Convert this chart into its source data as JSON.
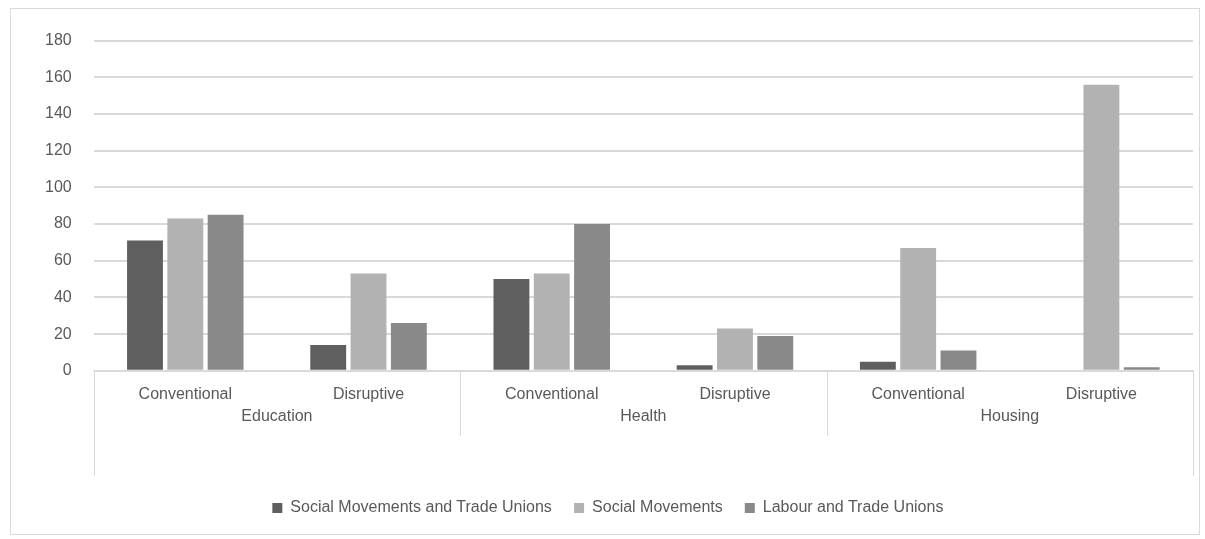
{
  "chart_data": {
    "type": "bar",
    "categories": [
      "Conventional",
      "Disruptive",
      "Conventional",
      "Disruptive",
      "Conventional",
      "Disruptive"
    ],
    "series": [
      {
        "name": "Social Movements and Trade Unions",
        "color": "#5f5f5f",
        "values": [
          71,
          14,
          50,
          3,
          5,
          0
        ]
      },
      {
        "name": "Social Movements",
        "color": "#b2b2b2",
        "values": [
          83,
          53,
          53,
          23,
          67,
          156
        ]
      },
      {
        "name": "Labour and Trade Unions",
        "color": "#898989",
        "values": [
          85,
          26,
          80,
          19,
          11,
          2
        ]
      }
    ],
    "annotations": [
      "Education",
      "Health",
      "Housing"
    ],
    "ylim": [
      0,
      180
    ],
    "yticks": [
      0,
      20,
      40,
      60,
      80,
      100,
      120,
      140,
      160,
      180
    ],
    "grid": "y",
    "legend": "bottom"
  }
}
